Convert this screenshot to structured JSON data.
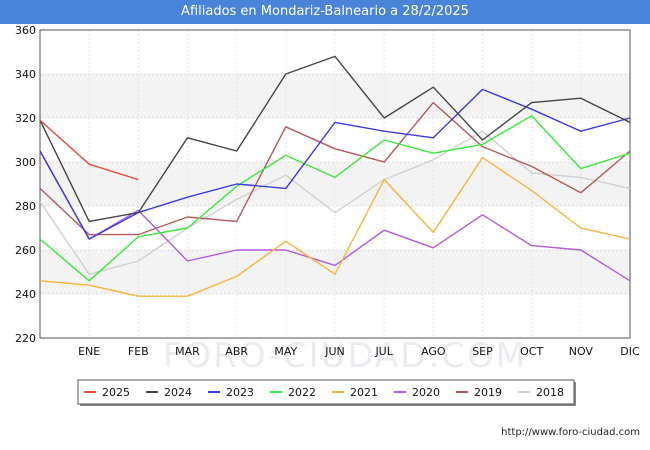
{
  "title": "Afiliados en Mondariz-Balneario a 28/2/2025",
  "source": "http://www.foro-ciudad.com",
  "watermark": "FORO-CIUDAD.COM",
  "chart_data": {
    "type": "line",
    "title": "Afiliados en Mondariz-Balneario a 28/2/2025",
    "xlabel": "",
    "ylabel": "",
    "categories": [
      "",
      "ENE",
      "FEB",
      "MAR",
      "ABR",
      "MAY",
      "JUN",
      "JUL",
      "AGO",
      "SEP",
      "OCT",
      "NOV",
      "DIC"
    ],
    "ylim": [
      220,
      360
    ],
    "yticks": [
      220,
      240,
      260,
      280,
      300,
      320,
      340,
      360
    ],
    "grid": "horizontal",
    "legend_position": "bottom",
    "series": [
      {
        "name": "2025",
        "color": "#e74c3c",
        "values": [
          319,
          299,
          292,
          null,
          null,
          null,
          null,
          null,
          null,
          null,
          null,
          null,
          null
        ]
      },
      {
        "name": "2024",
        "color": "#444444",
        "values": [
          319,
          273,
          277,
          311,
          305,
          340,
          348,
          320,
          334,
          310,
          327,
          329,
          318
        ]
      },
      {
        "name": "2023",
        "color": "#3b3be0",
        "values": [
          305,
          265,
          277,
          284,
          290,
          288,
          318,
          314,
          311,
          333,
          324,
          314,
          320
        ]
      },
      {
        "name": "2022",
        "color": "#3ce83c",
        "values": [
          265,
          246,
          266,
          270,
          289,
          303,
          293,
          310,
          304,
          308,
          321,
          297,
          304
        ]
      },
      {
        "name": "2021",
        "color": "#f5b43c",
        "values": [
          246,
          244,
          239,
          239,
          248,
          264,
          249,
          292,
          268,
          302,
          287,
          270,
          265
        ]
      },
      {
        "name": "2020",
        "color": "#b15be0",
        "values": [
          305,
          265,
          278,
          255,
          260,
          260,
          253,
          269,
          261,
          276,
          262,
          260,
          246
        ]
      },
      {
        "name": "2019",
        "color": "#b55a5a",
        "values": [
          288,
          267,
          267,
          275,
          273,
          316,
          306,
          300,
          327,
          307,
          298,
          286,
          305
        ]
      },
      {
        "name": "2018",
        "color": "#d0d0d0",
        "values": [
          282,
          249,
          255,
          270,
          283,
          294,
          277,
          292,
          301,
          314,
          295,
          293,
          288
        ]
      }
    ]
  }
}
